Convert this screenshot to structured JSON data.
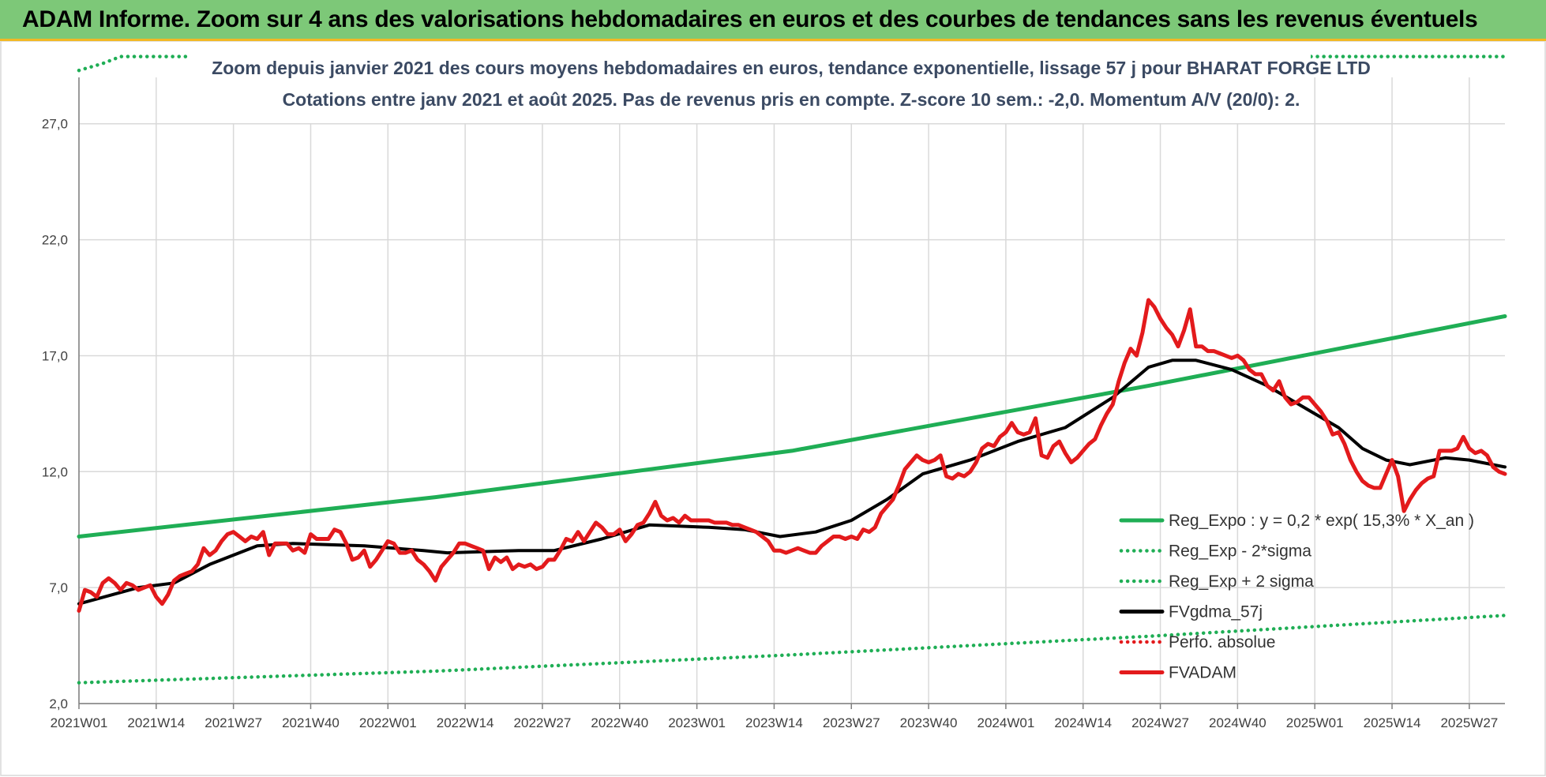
{
  "header": {
    "title": "ADAM Informe. Zoom sur 4 ans des valorisations hebdomadaires en euros et des courbes de tendances sans les revenus éventuels"
  },
  "chart_data": {
    "type": "line",
    "title": "Zoom depuis janvier 2021 des cours moyens hebdomadaires en euros, tendance exponentielle, lissage 57 j pour BHARAT FORGE LTD",
    "subtitle": "Cotations entre janv 2021 et août 2025.  Pas de revenus pris en compte. Z-score 10 sem.: -2,0. Momentum A/V (20/0): 2.",
    "xlabel": "",
    "ylabel": "",
    "ylim": [
      2,
      29
    ],
    "y_ticks": [
      "2,0",
      "7,0",
      "12,0",
      "17,0",
      "22,0",
      "27,0"
    ],
    "y_tick_values": [
      2,
      7,
      12,
      17,
      22,
      27
    ],
    "x_ticks": [
      "2021W01",
      "2021W14",
      "2021W27",
      "2021W40",
      "2022W01",
      "2022W14",
      "2022W27",
      "2022W40",
      "2023W01",
      "2023W14",
      "2023W27",
      "2023W40",
      "2024W01",
      "2024W14",
      "2024W27",
      "2024W40",
      "2025W01",
      "2025W14",
      "2025W27"
    ],
    "x_tick_weeks": [
      0,
      13,
      26,
      39,
      52,
      65,
      78,
      91,
      104,
      117,
      130,
      143,
      156,
      169,
      182,
      195,
      208,
      221,
      234
    ],
    "x_range_weeks": [
      0,
      240
    ],
    "grid": "vertical and horizontal",
    "legend_position": "lower-right",
    "series": [
      {
        "name": "Reg_Expo : y = 0,2 * exp( 15,3% * X_an )",
        "color": "#1fae55",
        "style": "solid",
        "points": [
          [
            0,
            9.2
          ],
          [
            60,
            10.9
          ],
          [
            120,
            12.9
          ],
          [
            180,
            15.7
          ],
          [
            240,
            18.7
          ]
        ]
      },
      {
        "name": "Reg_Exp - 2*sigma",
        "color": "#1fae55",
        "style": "dotted",
        "points": [
          [
            0,
            2.9
          ],
          [
            60,
            3.4
          ],
          [
            120,
            4.1
          ],
          [
            180,
            4.9
          ],
          [
            240,
            5.8
          ]
        ]
      },
      {
        "name": "Reg_Exp + 2 sigma",
        "color": "#1fae55",
        "style": "dotted",
        "points": [
          [
            0,
            29.3
          ],
          [
            4,
            29.6
          ],
          [
            7,
            29.9
          ],
          [
            24,
            29.9
          ],
          [
            208,
            29.9
          ],
          [
            240,
            29.9
          ]
        ]
      },
      {
        "name": "FVgdma_57j",
        "color": "#000000",
        "style": "solid",
        "points": [
          [
            0,
            6.3
          ],
          [
            10,
            7.0
          ],
          [
            16,
            7.2
          ],
          [
            22,
            8.0
          ],
          [
            30,
            8.8
          ],
          [
            36,
            8.9
          ],
          [
            48,
            8.8
          ],
          [
            58,
            8.6
          ],
          [
            62,
            8.5
          ],
          [
            74,
            8.6
          ],
          [
            80,
            8.6
          ],
          [
            88,
            9.1
          ],
          [
            96,
            9.7
          ],
          [
            106,
            9.6
          ],
          [
            112,
            9.5
          ],
          [
            118,
            9.2
          ],
          [
            124,
            9.4
          ],
          [
            130,
            9.9
          ],
          [
            136,
            10.8
          ],
          [
            142,
            11.9
          ],
          [
            150,
            12.5
          ],
          [
            158,
            13.3
          ],
          [
            166,
            13.9
          ],
          [
            174,
            15.2
          ],
          [
            180,
            16.5
          ],
          [
            184,
            16.8
          ],
          [
            188,
            16.8
          ],
          [
            194,
            16.4
          ],
          [
            200,
            15.7
          ],
          [
            206,
            14.8
          ],
          [
            212,
            13.9
          ],
          [
            216,
            13.0
          ],
          [
            220,
            12.5
          ],
          [
            224,
            12.3
          ],
          [
            230,
            12.6
          ],
          [
            234,
            12.5
          ],
          [
            240,
            12.2
          ]
        ]
      },
      {
        "name": "Perfo. absolue",
        "color": "#e31a1c",
        "style": "dotted",
        "points": []
      },
      {
        "name": "FVADAM",
        "color": "#e31a1c",
        "style": "solid",
        "points": [
          [
            0,
            6.0
          ],
          [
            1,
            6.9
          ],
          [
            2,
            6.8
          ],
          [
            3,
            6.6
          ],
          [
            4,
            7.2
          ],
          [
            5,
            7.4
          ],
          [
            6,
            7.2
          ],
          [
            7,
            6.9
          ],
          [
            8,
            7.2
          ],
          [
            9,
            7.1
          ],
          [
            10,
            6.9
          ],
          [
            11,
            7.0
          ],
          [
            12,
            7.1
          ],
          [
            13,
            6.6
          ],
          [
            14,
            6.3
          ],
          [
            15,
            6.7
          ],
          [
            16,
            7.3
          ],
          [
            17,
            7.5
          ],
          [
            18,
            7.6
          ],
          [
            19,
            7.7
          ],
          [
            20,
            8.0
          ],
          [
            21,
            8.7
          ],
          [
            22,
            8.4
          ],
          [
            23,
            8.6
          ],
          [
            24,
            9.0
          ],
          [
            25,
            9.3
          ],
          [
            26,
            9.4
          ],
          [
            27,
            9.2
          ],
          [
            28,
            9.0
          ],
          [
            29,
            9.2
          ],
          [
            30,
            9.1
          ],
          [
            31,
            9.4
          ],
          [
            32,
            8.4
          ],
          [
            33,
            8.9
          ],
          [
            34,
            8.9
          ],
          [
            35,
            8.9
          ],
          [
            36,
            8.6
          ],
          [
            37,
            8.7
          ],
          [
            38,
            8.5
          ],
          [
            39,
            9.3
          ],
          [
            40,
            9.1
          ],
          [
            41,
            9.1
          ],
          [
            42,
            9.1
          ],
          [
            43,
            9.5
          ],
          [
            44,
            9.4
          ],
          [
            45,
            8.9
          ],
          [
            46,
            8.2
          ],
          [
            47,
            8.3
          ],
          [
            48,
            8.6
          ],
          [
            49,
            7.9
          ],
          [
            50,
            8.2
          ],
          [
            51,
            8.6
          ],
          [
            52,
            9.0
          ],
          [
            53,
            8.9
          ],
          [
            54,
            8.5
          ],
          [
            55,
            8.5
          ],
          [
            56,
            8.6
          ],
          [
            57,
            8.2
          ],
          [
            58,
            8.0
          ],
          [
            59,
            7.7
          ],
          [
            60,
            7.3
          ],
          [
            61,
            7.9
          ],
          [
            62,
            8.2
          ],
          [
            63,
            8.5
          ],
          [
            64,
            8.9
          ],
          [
            65,
            8.9
          ],
          [
            66,
            8.8
          ],
          [
            67,
            8.7
          ],
          [
            68,
            8.6
          ],
          [
            69,
            7.8
          ],
          [
            70,
            8.3
          ],
          [
            71,
            8.1
          ],
          [
            72,
            8.3
          ],
          [
            73,
            7.8
          ],
          [
            74,
            8.0
          ],
          [
            75,
            7.9
          ],
          [
            76,
            8.0
          ],
          [
            77,
            7.8
          ],
          [
            78,
            7.9
          ],
          [
            79,
            8.2
          ],
          [
            80,
            8.2
          ],
          [
            81,
            8.6
          ],
          [
            82,
            9.1
          ],
          [
            83,
            9.0
          ],
          [
            84,
            9.4
          ],
          [
            85,
            9.0
          ],
          [
            86,
            9.4
          ],
          [
            87,
            9.8
          ],
          [
            88,
            9.6
          ],
          [
            89,
            9.3
          ],
          [
            90,
            9.3
          ],
          [
            91,
            9.5
          ],
          [
            92,
            9.0
          ],
          [
            93,
            9.3
          ],
          [
            94,
            9.7
          ],
          [
            95,
            9.8
          ],
          [
            96,
            10.2
          ],
          [
            97,
            10.7
          ],
          [
            98,
            10.1
          ],
          [
            99,
            9.9
          ],
          [
            100,
            10.0
          ],
          [
            101,
            9.8
          ],
          [
            102,
            10.1
          ],
          [
            103,
            9.9
          ],
          [
            104,
            9.9
          ],
          [
            105,
            9.9
          ],
          [
            106,
            9.9
          ],
          [
            107,
            9.8
          ],
          [
            108,
            9.8
          ],
          [
            109,
            9.8
          ],
          [
            110,
            9.7
          ],
          [
            111,
            9.7
          ],
          [
            112,
            9.6
          ],
          [
            113,
            9.5
          ],
          [
            114,
            9.4
          ],
          [
            115,
            9.2
          ],
          [
            116,
            9.0
          ],
          [
            117,
            8.6
          ],
          [
            118,
            8.6
          ],
          [
            119,
            8.5
          ],
          [
            120,
            8.6
          ],
          [
            121,
            8.7
          ],
          [
            122,
            8.6
          ],
          [
            123,
            8.5
          ],
          [
            124,
            8.5
          ],
          [
            125,
            8.8
          ],
          [
            126,
            9.0
          ],
          [
            127,
            9.2
          ],
          [
            128,
            9.2
          ],
          [
            129,
            9.1
          ],
          [
            130,
            9.2
          ],
          [
            131,
            9.1
          ],
          [
            132,
            9.5
          ],
          [
            133,
            9.4
          ],
          [
            134,
            9.6
          ],
          [
            135,
            10.2
          ],
          [
            136,
            10.5
          ],
          [
            137,
            10.8
          ],
          [
            138,
            11.4
          ],
          [
            139,
            12.1
          ],
          [
            140,
            12.4
          ],
          [
            141,
            12.7
          ],
          [
            142,
            12.5
          ],
          [
            143,
            12.4
          ],
          [
            144,
            12.5
          ],
          [
            145,
            12.7
          ],
          [
            146,
            11.8
          ],
          [
            147,
            11.7
          ],
          [
            148,
            11.9
          ],
          [
            149,
            11.8
          ],
          [
            150,
            12.0
          ],
          [
            151,
            12.4
          ],
          [
            152,
            13.0
          ],
          [
            153,
            13.2
          ],
          [
            154,
            13.1
          ],
          [
            155,
            13.5
          ],
          [
            156,
            13.7
          ],
          [
            157,
            14.1
          ],
          [
            158,
            13.7
          ],
          [
            159,
            13.6
          ],
          [
            160,
            13.7
          ],
          [
            161,
            14.3
          ],
          [
            162,
            12.7
          ],
          [
            163,
            12.6
          ],
          [
            164,
            13.1
          ],
          [
            165,
            13.3
          ],
          [
            166,
            12.8
          ],
          [
            167,
            12.4
          ],
          [
            168,
            12.6
          ],
          [
            169,
            12.9
          ],
          [
            170,
            13.2
          ],
          [
            171,
            13.4
          ],
          [
            172,
            14.0
          ],
          [
            173,
            14.5
          ],
          [
            174,
            14.9
          ],
          [
            175,
            15.9
          ],
          [
            176,
            16.7
          ],
          [
            177,
            17.3
          ],
          [
            178,
            17.0
          ],
          [
            179,
            18.0
          ],
          [
            180,
            19.4
          ],
          [
            181,
            19.1
          ],
          [
            182,
            18.6
          ],
          [
            183,
            18.2
          ],
          [
            184,
            17.9
          ],
          [
            185,
            17.4
          ],
          [
            186,
            18.1
          ],
          [
            187,
            19.0
          ],
          [
            188,
            17.4
          ],
          [
            189,
            17.4
          ],
          [
            190,
            17.2
          ],
          [
            191,
            17.2
          ],
          [
            192,
            17.1
          ],
          [
            193,
            17.0
          ],
          [
            194,
            16.9
          ],
          [
            195,
            17.0
          ],
          [
            196,
            16.8
          ],
          [
            197,
            16.4
          ],
          [
            198,
            16.2
          ],
          [
            199,
            16.2
          ],
          [
            200,
            15.7
          ],
          [
            201,
            15.5
          ],
          [
            202,
            15.9
          ],
          [
            203,
            15.2
          ],
          [
            204,
            14.9
          ],
          [
            205,
            15.0
          ],
          [
            206,
            15.2
          ],
          [
            207,
            15.2
          ],
          [
            208,
            14.9
          ],
          [
            209,
            14.6
          ],
          [
            210,
            14.2
          ],
          [
            211,
            13.6
          ],
          [
            212,
            13.7
          ],
          [
            213,
            13.2
          ],
          [
            214,
            12.5
          ],
          [
            215,
            12.0
          ],
          [
            216,
            11.6
          ],
          [
            217,
            11.4
          ],
          [
            218,
            11.3
          ],
          [
            219,
            11.3
          ],
          [
            220,
            11.9
          ],
          [
            221,
            12.5
          ],
          [
            222,
            11.8
          ],
          [
            223,
            10.3
          ],
          [
            224,
            10.8
          ],
          [
            225,
            11.2
          ],
          [
            226,
            11.5
          ],
          [
            227,
            11.7
          ],
          [
            228,
            11.8
          ],
          [
            229,
            12.9
          ],
          [
            230,
            12.9
          ],
          [
            231,
            12.9
          ],
          [
            232,
            13.0
          ],
          [
            233,
            13.5
          ],
          [
            234,
            13.0
          ],
          [
            235,
            12.8
          ],
          [
            236,
            12.9
          ],
          [
            237,
            12.7
          ],
          [
            238,
            12.2
          ],
          [
            239,
            12.0
          ],
          [
            240,
            11.9
          ]
        ]
      }
    ]
  }
}
